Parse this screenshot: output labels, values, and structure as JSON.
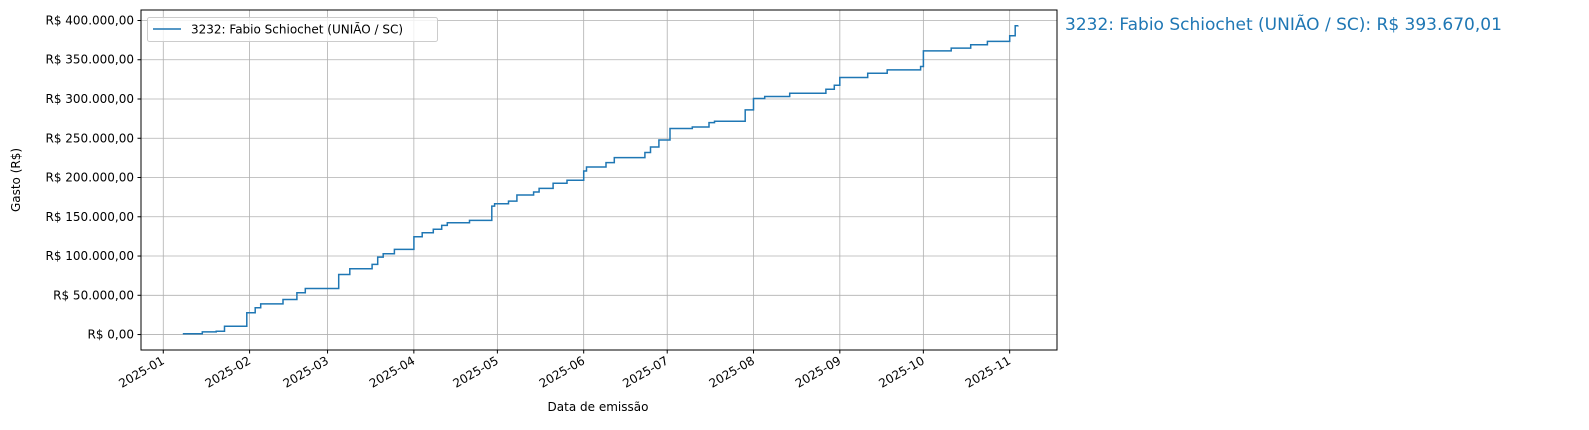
{
  "chart_data": {
    "type": "line",
    "step": "post",
    "title": "",
    "xlabel": "Data de emissão",
    "ylabel": "Gasto (R$)",
    "xlim": [
      "2024-12-24",
      "2025-11-18"
    ],
    "ylim": [
      -19684,
      413354
    ],
    "grid": true,
    "legend_position": "top-left",
    "x_ticks": [
      "2025-01",
      "2025-02",
      "2025-03",
      "2025-04",
      "2025-05",
      "2025-06",
      "2025-07",
      "2025-08",
      "2025-09",
      "2025-10",
      "2025-11"
    ],
    "y_ticks": [
      0,
      50000,
      100000,
      150000,
      200000,
      250000,
      300000,
      350000,
      400000
    ],
    "y_tick_labels": [
      "R$ 0,00",
      "R$ 50.000,00",
      "R$ 100.000,00",
      "R$ 150.000,00",
      "R$ 200.000,00",
      "R$ 250.000,00",
      "R$ 300.000,00",
      "R$ 350.000,00",
      "R$ 400.000,00"
    ],
    "series": [
      {
        "name": "3232: Fabio Schiochet (UNIÃO / SC)",
        "color": "#1f77b4",
        "x": [
          "2025-01-08",
          "2025-01-15",
          "2025-01-20",
          "2025-01-23",
          "2025-01-31",
          "2025-02-03",
          "2025-02-05",
          "2025-02-13",
          "2025-02-18",
          "2025-02-21",
          "2025-03-05",
          "2025-03-09",
          "2025-03-17",
          "2025-03-19",
          "2025-03-21",
          "2025-03-25",
          "2025-04-01",
          "2025-04-04",
          "2025-04-08",
          "2025-04-11",
          "2025-04-13",
          "2025-04-21",
          "2025-04-29",
          "2025-04-30",
          "2025-05-05",
          "2025-05-08",
          "2025-05-14",
          "2025-05-16",
          "2025-05-21",
          "2025-05-26",
          "2025-06-01",
          "2025-06-02",
          "2025-06-09",
          "2025-06-12",
          "2025-06-23",
          "2025-06-25",
          "2025-06-28",
          "2025-07-02",
          "2025-07-10",
          "2025-07-16",
          "2025-07-18",
          "2025-07-29",
          "2025-08-01",
          "2025-08-05",
          "2025-08-14",
          "2025-08-27",
          "2025-08-30",
          "2025-09-01",
          "2025-09-11",
          "2025-09-18",
          "2025-09-30",
          "2025-10-01",
          "2025-10-11",
          "2025-10-18",
          "2025-10-24",
          "2025-11-01",
          "2025-11-03",
          "2025-11-04"
        ],
        "y": [
          900,
          3400,
          4200,
          10600,
          27700,
          34000,
          39000,
          44600,
          53200,
          58700,
          76500,
          83800,
          89300,
          98600,
          103000,
          108400,
          124600,
          129700,
          134000,
          139000,
          142500,
          145400,
          163600,
          166700,
          170000,
          177700,
          181500,
          186200,
          192600,
          196400,
          208300,
          213400,
          219000,
          225400,
          231800,
          238900,
          247800,
          262400,
          264400,
          270000,
          271700,
          286100,
          300600,
          303200,
          307400,
          312500,
          317600,
          327400,
          332900,
          337100,
          341400,
          361300,
          364800,
          369000,
          373300,
          380500,
          393300,
          393670
        ]
      }
    ],
    "annotation": "3232: Fabio Schiochet (UNIÃO / SC): R$ 393.670,01"
  }
}
